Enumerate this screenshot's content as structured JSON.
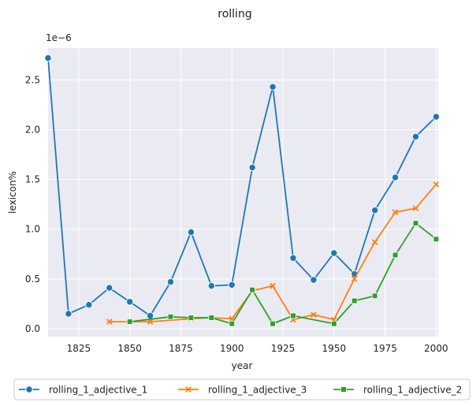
{
  "chart_data": {
    "type": "line",
    "title": "rolling",
    "xlabel": "year",
    "ylabel": "lexicon%",
    "y_scale_label": "1e−6",
    "xlim": [
      1810,
      2001
    ],
    "ylim": [
      -0.08,
      2.82
    ],
    "xticks": [
      1825,
      1850,
      1875,
      1900,
      1925,
      1950,
      1975,
      2000
    ],
    "yticks": [
      0.0,
      0.5,
      1.0,
      1.5,
      2.0,
      2.5
    ],
    "ytick_labels": [
      "0.0",
      "0.5",
      "1.0",
      "1.5",
      "2.0",
      "2.5"
    ],
    "grid": true,
    "legend_placement": "below",
    "series": [
      {
        "name": "rolling_1_adjective_1",
        "color": "#1f77b4",
        "marker": "circle",
        "x": [
          1810,
          1820,
          1830,
          1840,
          1850,
          1860,
          1870,
          1880,
          1890,
          1900,
          1910,
          1920,
          1930,
          1940,
          1950,
          1960,
          1970,
          1980,
          1990,
          2000
        ],
        "y": [
          2.72,
          0.15,
          0.24,
          0.41,
          0.27,
          0.13,
          0.47,
          0.97,
          0.43,
          0.44,
          1.62,
          2.43,
          0.71,
          0.49,
          0.76,
          0.55,
          1.19,
          1.52,
          1.93,
          2.13
        ]
      },
      {
        "name": "rolling_1_adjective_3",
        "color": "#ff7f0e",
        "marker": "x",
        "x": [
          1840,
          1850,
          1860,
          1880,
          1890,
          1900,
          1910,
          1920,
          1930,
          1940,
          1950,
          1960,
          1970,
          1980,
          1990,
          2000
        ],
        "y": [
          0.07,
          0.07,
          0.07,
          0.1,
          0.11,
          0.1,
          0.38,
          0.43,
          0.09,
          0.14,
          0.09,
          0.5,
          0.87,
          1.17,
          1.21,
          1.45
        ]
      },
      {
        "name": "rolling_1_adjective_2",
        "color": "#2ca02c",
        "marker": "square",
        "x": [
          1850,
          1870,
          1880,
          1890,
          1900,
          1910,
          1920,
          1930,
          1950,
          1960,
          1970,
          1980,
          1990,
          2000
        ],
        "y": [
          0.07,
          0.12,
          0.11,
          0.11,
          0.05,
          0.39,
          0.05,
          0.13,
          0.05,
          0.28,
          0.33,
          0.74,
          1.06,
          0.9
        ]
      }
    ]
  }
}
